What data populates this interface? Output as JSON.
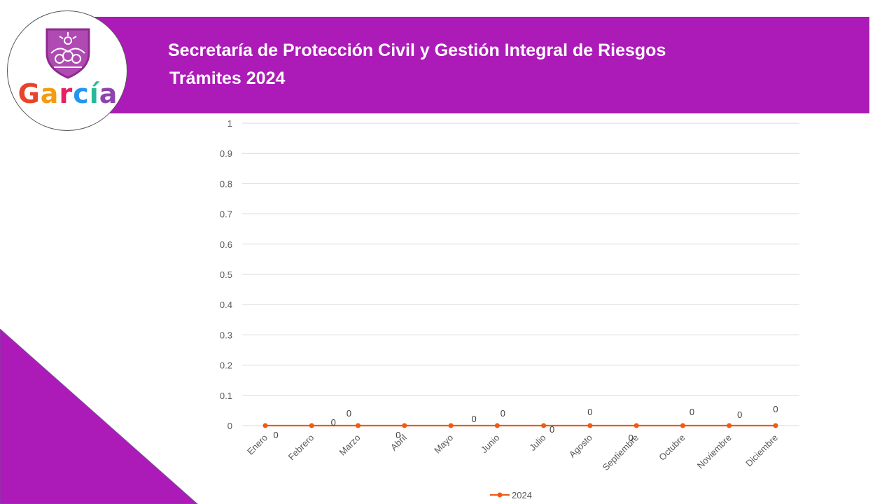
{
  "header": {
    "title_line1": "Secretaría de Protección Civil y Gestión Integral de Riesgos",
    "title_line2": "Trámites 2024",
    "color": "#ac1bb8"
  },
  "logo": {
    "icon": "shield-crest-icon",
    "text_letters": [
      "G",
      "a",
      "r",
      "c",
      "í",
      "a"
    ],
    "letter_colors": [
      "#e8432b",
      "#f39c12",
      "#e91e63",
      "#2196f3",
      "#26b99a",
      "#8e44ad"
    ]
  },
  "chart_data": {
    "type": "line",
    "categories": [
      "Enero",
      "Febrero",
      "Marzo",
      "Abril",
      "Mayo",
      "Junio",
      "Julio",
      "Agosto",
      "Septiembre",
      "Octubre",
      "Noviembre",
      "Diciembre"
    ],
    "series": [
      {
        "name": "2024",
        "values": [
          0,
          0,
          0,
          0,
          0,
          0,
          0,
          0,
          0,
          0,
          0,
          0
        ],
        "color": "#f05a12"
      }
    ],
    "yticks": [
      "0",
      "0.1",
      "0.2",
      "0.3",
      "0.4",
      "0.5",
      "0.6",
      "0.7",
      "0.8",
      "0.9",
      "1"
    ],
    "ylim": [
      0,
      1
    ],
    "grid": true,
    "legend": "bottom"
  }
}
